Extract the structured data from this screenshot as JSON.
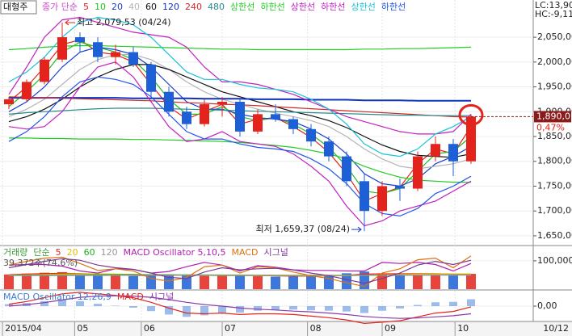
{
  "chart_data": [
    {
      "type": "candlestick",
      "title": "대형주",
      "subtitle": "종가 단순",
      "categories": [
        null,
        null,
        null,
        null,
        null,
        null,
        null,
        null,
        null,
        null,
        null,
        null,
        null,
        null,
        null,
        null,
        null,
        null,
        null,
        null,
        null,
        null,
        null,
        null,
        null,
        null,
        null
      ],
      "open": [
        1915,
        1925,
        1960,
        2005,
        2050,
        2040,
        2010,
        2020,
        1995,
        1940,
        1900,
        1875,
        1915,
        1920,
        1860,
        1895,
        1885,
        1865,
        1840,
        1810,
        1760,
        1700,
        1750,
        1745,
        1810,
        1835,
        1800
      ],
      "high": [
        1930,
        1965,
        2010,
        2079.53,
        2060,
        2050,
        2035,
        2030,
        2000,
        1950,
        1910,
        1925,
        1930,
        1925,
        1905,
        1915,
        1890,
        1875,
        1850,
        1820,
        1775,
        1760,
        1765,
        1820,
        1850,
        1845,
        1895
      ],
      "low": [
        1905,
        1920,
        1955,
        2000,
        2020,
        2000,
        1995,
        1990,
        1930,
        1890,
        1865,
        1870,
        1890,
        1850,
        1855,
        1880,
        1855,
        1830,
        1800,
        1750,
        1659.37,
        1690,
        1720,
        1740,
        1800,
        1770,
        1795
      ],
      "close": [
        1925,
        1960,
        2005,
        2050,
        2040,
        2010,
        2020,
        1995,
        1940,
        1900,
        1875,
        1915,
        1920,
        1860,
        1895,
        1885,
        1865,
        1840,
        1810,
        1760,
        1700,
        1750,
        1745,
        1810,
        1835,
        1800,
        1890
      ],
      "up_color": "#e3231c",
      "down_color": "#1c5fd6",
      "series": [
        {
          "name": "5",
          "color": "#e3231c",
          "values": [
            1920,
            1950,
            1990,
            2035,
            2045,
            2020,
            2015,
            2000,
            1955,
            1910,
            1885,
            1900,
            1915,
            1875,
            1885,
            1888,
            1870,
            1848,
            1818,
            1775,
            1720,
            1735,
            1748,
            1795,
            1825,
            1815,
            1870
          ]
        },
        {
          "name": "10",
          "color": "#1fbf1f",
          "values": [
            1910,
            1940,
            1975,
            2020,
            2040,
            2030,
            2020,
            2005,
            1970,
            1925,
            1895,
            1895,
            1910,
            1890,
            1882,
            1888,
            1875,
            1855,
            1828,
            1790,
            1740,
            1735,
            1745,
            1780,
            1815,
            1820,
            1850
          ]
        },
        {
          "name": "20",
          "color": "#1a3fd0",
          "values": [
            1900,
            1920,
            1950,
            1990,
            2020,
            2030,
            2025,
            2015,
            1990,
            1955,
            1920,
            1905,
            1905,
            1895,
            1888,
            1885,
            1880,
            1865,
            1845,
            1815,
            1775,
            1755,
            1750,
            1765,
            1795,
            1810,
            1830
          ]
        },
        {
          "name": "40",
          "color": "#b4b4b4",
          "values": [
            1890,
            1905,
            1925,
            1955,
            1985,
            2005,
            2015,
            2015,
            2005,
            1985,
            1960,
            1940,
            1925,
            1915,
            1905,
            1897,
            1890,
            1882,
            1870,
            1850,
            1825,
            1805,
            1790,
            1785,
            1790,
            1795,
            1805
          ]
        },
        {
          "name": "60",
          "color": "#111111",
          "values": [
            1880,
            1890,
            1905,
            1925,
            1950,
            1970,
            1985,
            1995,
            1995,
            1985,
            1970,
            1955,
            1940,
            1930,
            1920,
            1910,
            1900,
            1892,
            1882,
            1868,
            1850,
            1833,
            1820,
            1812,
            1810,
            1808,
            1815
          ]
        },
        {
          "name": "120",
          "color": "#1133bb",
          "values": [
            1928,
            1928,
            1928,
            1928,
            1928,
            1928,
            1928,
            1927,
            1927,
            1927,
            1927,
            1926,
            1926,
            1926,
            1925,
            1925,
            1925,
            1924,
            1924,
            1924,
            1923,
            1923,
            1923,
            1922,
            1922,
            1922,
            1922
          ]
        },
        {
          "name": "240",
          "color": "#cc2a2a",
          "values": [
            1930,
            1929,
            1928,
            1927,
            1926,
            1925,
            1924,
            1923,
            1922,
            1920,
            1918,
            1917,
            1915,
            1914,
            1912,
            1910,
            1908,
            1906,
            1904,
            1902,
            1900,
            1898,
            1896,
            1894,
            1892,
            1890,
            1889
          ]
        },
        {
          "name": "480",
          "color": "#2a8a8a",
          "values": [
            1895,
            1898,
            1900,
            1902,
            1904,
            1906,
            1907,
            1907,
            1907,
            1906,
            1905,
            1904,
            1903,
            1902,
            1901,
            1900,
            1899,
            1898,
            1897,
            1896,
            1895,
            1894,
            1893,
            1893,
            1892,
            1892,
            1892
          ]
        },
        {
          "name": "상한선",
          "color": "#22cc22",
          "values": [
            2025,
            2027,
            2030,
            2032,
            2033,
            2033,
            2032,
            2031,
            2030,
            2029,
            2028,
            2027,
            2026,
            2026,
            2025,
            2025,
            2025,
            2025,
            2025,
            2025,
            2026,
            2026,
            2027,
            2027,
            2028,
            2029,
            2030
          ]
        },
        {
          "name": "하한선",
          "color": "#22cc22",
          "values": [
            1847,
            1847,
            1846,
            1846,
            1845,
            1845,
            1845,
            1844,
            1844,
            1843,
            1842,
            1841,
            1840,
            1838,
            1835,
            1832,
            1828,
            1822,
            1815,
            1805,
            1790,
            1778,
            1768,
            1762,
            1760,
            1758,
            1758
          ]
        },
        {
          "name": "상한선",
          "color": "#c21fc2",
          "values": [
            1935,
            1990,
            2050,
            2085,
            2090,
            2080,
            2070,
            2060,
            2055,
            2050,
            2030,
            1990,
            1960,
            1960,
            1955,
            1945,
            1935,
            1920,
            1905,
            1890,
            1880,
            1870,
            1860,
            1855,
            1855,
            1860,
            1895
          ]
        },
        {
          "name": "하한선",
          "color": "#c21fc2",
          "values": [
            1870,
            1865,
            1870,
            1900,
            1950,
            1990,
            2000,
            1970,
            1920,
            1870,
            1840,
            1845,
            1860,
            1840,
            1835,
            1830,
            1815,
            1790,
            1760,
            1710,
            1670,
            1680,
            1700,
            1710,
            1720,
            1740,
            1760
          ]
        },
        {
          "name": "상한선",
          "color": "#19c2d8",
          "values": [
            1960,
            1980,
            2010,
            2050,
            2080,
            2090,
            2085,
            2075,
            2050,
            2015,
            1980,
            1965,
            1965,
            1955,
            1948,
            1945,
            1940,
            1925,
            1905,
            1875,
            1835,
            1815,
            1810,
            1825,
            1855,
            1870,
            1890
          ]
        },
        {
          "name": "하한선",
          "color": "#2255ee",
          "values": [
            1840,
            1860,
            1890,
            1930,
            1960,
            1970,
            1965,
            1955,
            1930,
            1895,
            1860,
            1845,
            1845,
            1835,
            1828,
            1825,
            1820,
            1805,
            1785,
            1755,
            1715,
            1695,
            1690,
            1705,
            1735,
            1750,
            1770
          ]
        }
      ],
      "xlim": [
        -0.5,
        29.5
      ],
      "xticks": [
        {
          "value": -0.36,
          "label": "2015/04"
        },
        {
          "value": 3.7,
          "label": "05"
        },
        {
          "value": 7.45,
          "label": "06"
        },
        {
          "value": 12.0,
          "label": "07"
        },
        {
          "value": 16.8,
          "label": "08"
        },
        {
          "value": 21.0,
          "label": "09"
        },
        {
          "value": 25.1,
          "label": "10"
        }
      ],
      "date_label": "10/12",
      "ylim": [
        1632,
        2125
      ],
      "yticks": [
        {
          "value": 2050,
          "label": "2,050,00"
        },
        {
          "value": 2000,
          "label": "2,000,00"
        },
        {
          "value": 1950,
          "label": "1,950,00"
        },
        {
          "value": 1900,
          "label": "1,900,00"
        },
        {
          "value": 1850,
          "label": "1,850,00"
        },
        {
          "value": 1800,
          "label": "1,800,00"
        },
        {
          "value": 1750,
          "label": "1,750,00"
        },
        {
          "value": 1700,
          "label": "1,700,00"
        },
        {
          "value": 1650,
          "label": "1,650,00"
        }
      ],
      "annotations": [
        {
          "value": 2079.53,
          "label": "최고 2,079,53 (04/24)"
        },
        {
          "value": 1659.37,
          "label": "최저 1,659,37 (08/24)"
        }
      ],
      "last_price": {
        "value": 1890,
        "label": "1,890,0"
      },
      "change": "0,47%",
      "info": [
        "LC:13,90",
        "HC:-9,11"
      ]
    },
    {
      "type": "bar",
      "title": "거래량",
      "subtitle": "단순",
      "note": "39,372주(74,6%)",
      "values": [
        52000,
        55000,
        58000,
        60000,
        50000,
        48000,
        47000,
        46000,
        50000,
        52000,
        49000,
        47000,
        48000,
        51000,
        46000,
        44000,
        45000,
        47000,
        50000,
        56000,
        62000,
        54000,
        50000,
        53000,
        55000,
        51000,
        54000
      ],
      "ylim": [
        0,
        151000
      ],
      "yticks": [
        {
          "value": 100000,
          "label": "100,000"
        }
      ],
      "y2lim": [
        -40,
        40
      ],
      "series": [
        {
          "name": "5",
          "color": "#e3231c",
          "values": [
            51000,
            53000,
            55000,
            56000,
            55000,
            53000,
            50000,
            48000,
            48000,
            49000,
            50000,
            49000,
            48000,
            48500,
            48000,
            47000,
            46000,
            46500,
            47000,
            49000,
            53000,
            54000,
            54000,
            54000,
            54000,
            53000,
            53000
          ]
        },
        {
          "name": "20",
          "color": "#e0c010",
          "values": [
            50000,
            50500,
            51500,
            53000,
            54000,
            54000,
            53000,
            52000,
            50500,
            49500,
            49000,
            48500,
            48500,
            48500,
            48000,
            47500,
            47500,
            47000,
            47000,
            47500,
            49000,
            50500,
            51500,
            52500,
            53000,
            53500,
            53500
          ]
        },
        {
          "name": "60",
          "color": "#22aa22",
          "values": [
            49000,
            49200,
            49500,
            50000,
            50500,
            51000,
            51200,
            51200,
            51000,
            50800,
            50500,
            50200,
            50000,
            49800,
            49500,
            49200,
            49000,
            48800,
            48600,
            48500,
            48700,
            49000,
            49300,
            49600,
            49900,
            50200,
            50400
          ]
        },
        {
          "name": "120",
          "color": "#999999",
          "values": [
            48000,
            48100,
            48200,
            48300,
            48400,
            48500,
            48600,
            48700,
            48800,
            48900,
            49000,
            49000,
            49000,
            49000,
            49000,
            49000,
            49000,
            49000,
            49000,
            49000,
            49100,
            49200,
            49300,
            49400,
            49500,
            49600,
            49700
          ]
        },
        {
          "name": "MACD Oscillator 5,10,5",
          "color": "#b01fb0",
          "axis": "y2",
          "values": [
            5,
            6,
            6,
            3,
            -6,
            -10,
            -2,
            -3,
            -10,
            -7,
            2,
            10,
            5,
            -6,
            4,
            1,
            -4,
            -5,
            -5,
            -6,
            -6,
            10,
            8,
            10,
            6,
            -6,
            8
          ]
        },
        {
          "name": "MACD",
          "color": "#e07010",
          "axis": "y2",
          "values": [
            5,
            12,
            18,
            20,
            8,
            -5,
            -2,
            -6,
            -20,
            -25,
            -18,
            2,
            5,
            -10,
            2,
            0,
            -8,
            -15,
            -20,
            -28,
            -35,
            -10,
            -2,
            15,
            18,
            0,
            22
          ]
        },
        {
          "name": "시그널",
          "color": "#7a3a9a",
          "axis": "y2",
          "values": [
            0,
            6,
            12,
            17,
            14,
            5,
            0,
            -3,
            -10,
            -18,
            -20,
            -8,
            0,
            -4,
            -2,
            -1,
            -4,
            -10,
            -15,
            -22,
            -29,
            -20,
            -10,
            5,
            12,
            6,
            14
          ]
        }
      ]
    },
    {
      "type": "line",
      "ylim": [
        -40,
        40
      ],
      "yticks": [
        {
          "value": 0,
          "label": "0,00"
        }
      ],
      "series": [
        {
          "name": "MACD Oscillator 12,26,9",
          "color": "#3a7ad8",
          "kind": "bar",
          "values": [
            5,
            8,
            13,
            16,
            13,
            6,
            1,
            -4,
            -13,
            -22,
            -28,
            -24,
            -18,
            -17,
            -12,
            -10,
            -9,
            -11,
            -12,
            -14,
            -18,
            -12,
            -6,
            3,
            10,
            11,
            18
          ]
        },
        {
          "name": "MACD",
          "color": "#e3231c",
          "values": [
            5,
            12,
            22,
            32,
            36,
            32,
            28,
            22,
            10,
            -5,
            -18,
            -20,
            -18,
            -22,
            -20,
            -20,
            -22,
            -26,
            -30,
            -36,
            -45,
            -42,
            -38,
            -28,
            -18,
            -14,
            -2
          ]
        },
        {
          "name": "시그널",
          "color": "#8a3aaa",
          "values": [
            0,
            4,
            9,
            16,
            23,
            26,
            27,
            26,
            23,
            17,
            10,
            4,
            0,
            -5,
            -8,
            -10,
            -13,
            -15,
            -18,
            -22,
            -27,
            -30,
            -32,
            -31,
            -28,
            -25,
            -20
          ]
        }
      ]
    }
  ]
}
